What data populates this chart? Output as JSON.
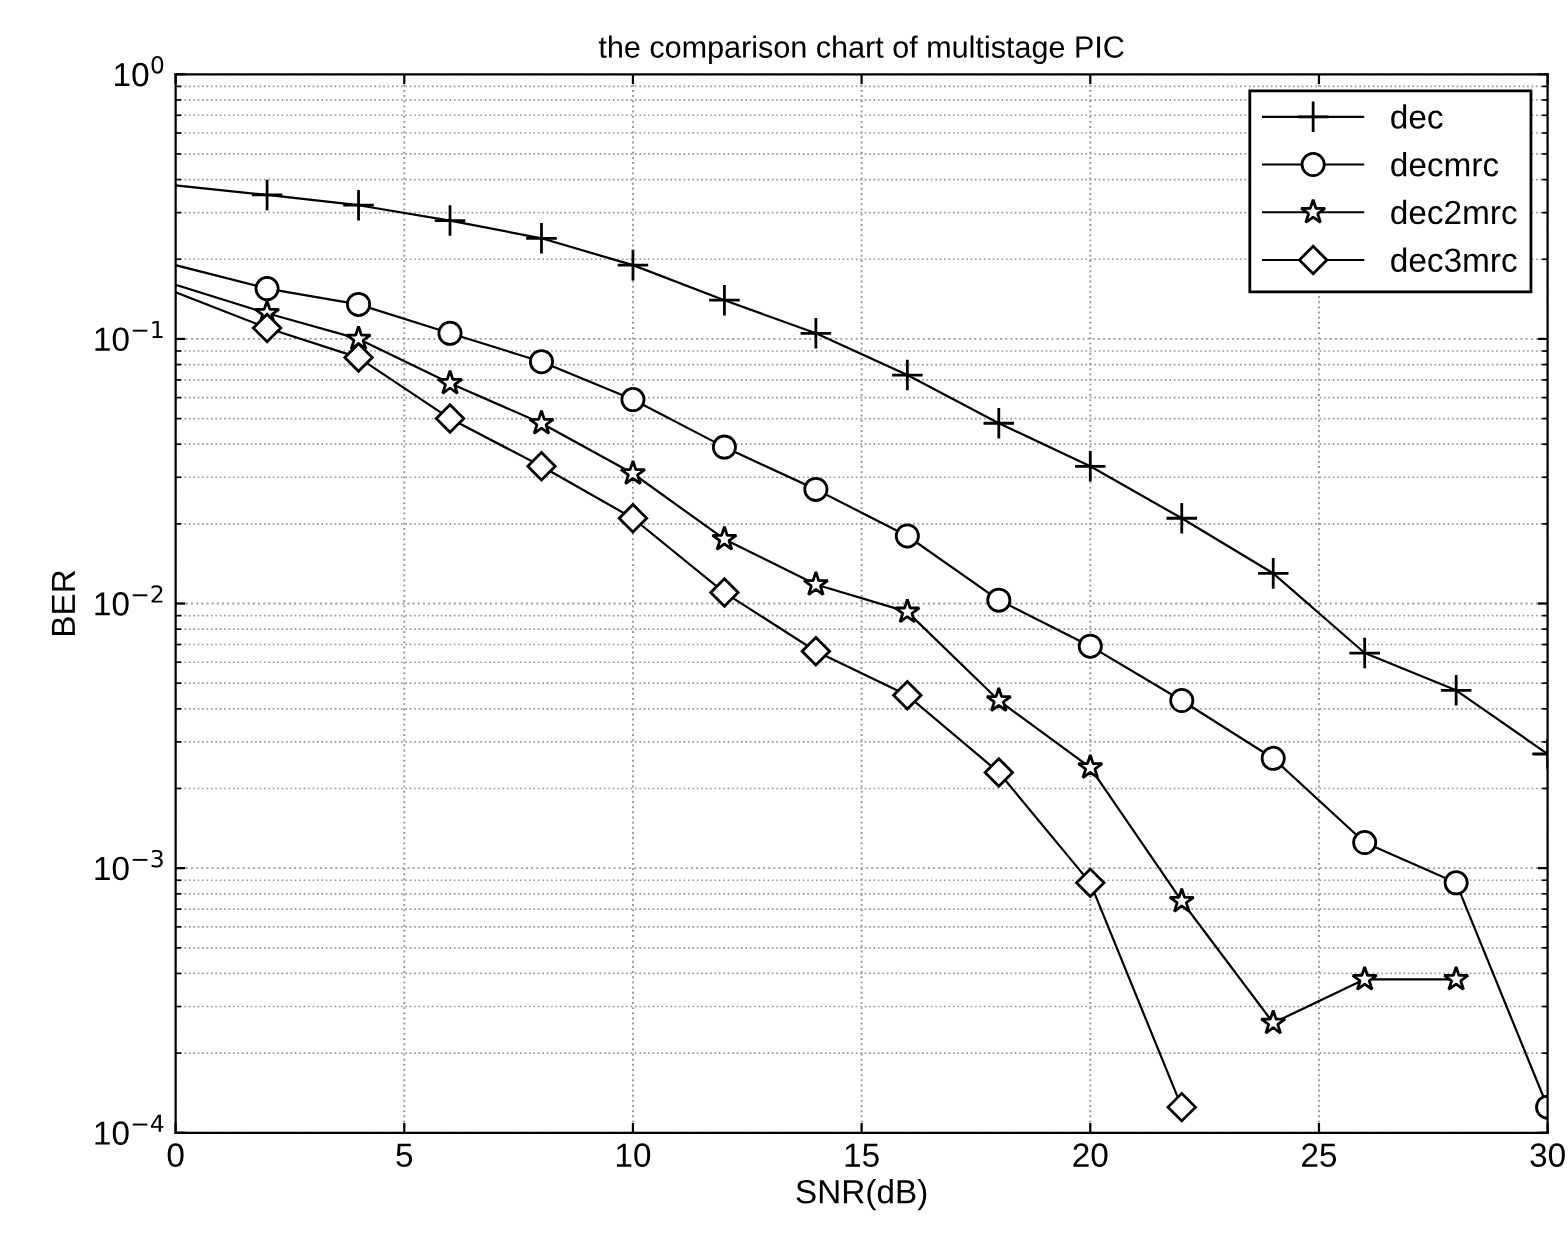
{
  "chart_data": {
    "type": "line",
    "title": "the comparison chart of multistage PIC",
    "xlabel": "SNR(dB)",
    "ylabel": "BER",
    "log": "y",
    "grid": true,
    "legend": "top right",
    "line_style": "solid",
    "xlim": [
      0,
      30
    ],
    "xticks": [
      0,
      5,
      10,
      15,
      20,
      25,
      30
    ],
    "ylim": [
      0.0001,
      1
    ],
    "yticks": [
      {
        "value": 0.0001,
        "label": "10$^{−4}$"
      },
      {
        "value": 0.001,
        "label": "10$^{−3}$"
      },
      {
        "value": 0.01,
        "label": "10$^{−2}$"
      },
      {
        "value": 0.1,
        "label": "10$^{−1}$"
      },
      {
        "value": 1,
        "label": "10$^{0}$"
      }
    ],
    "series": [
      {
        "name": "dec",
        "color": "#000000",
        "marker": "cross",
        "x": [
          0,
          2,
          4,
          6,
          8,
          10,
          12,
          14,
          16,
          18,
          20,
          22,
          24,
          26,
          28,
          30
        ],
        "values": [
          0.38,
          0.35,
          0.32,
          0.28,
          0.24,
          0.19,
          0.14,
          0.105,
          0.073,
          0.048,
          0.033,
          0.021,
          0.013,
          0.0065,
          0.0047,
          0.0027
        ]
      },
      {
        "name": "decmrc",
        "color": "#000000",
        "marker": "circle",
        "x": [
          0,
          2,
          4,
          6,
          8,
          10,
          12,
          14,
          16,
          18,
          20,
          22,
          24,
          26,
          28,
          30
        ],
        "values": [
          0.19,
          0.155,
          0.135,
          0.105,
          0.082,
          0.059,
          0.039,
          0.027,
          0.018,
          0.0103,
          0.0069,
          0.0043,
          0.0026,
          0.00125,
          0.00088,
          0.000125
        ]
      },
      {
        "name": "dec2mrc",
        "color": "#000000",
        "marker": "star",
        "x": [
          0,
          2,
          4,
          6,
          8,
          10,
          12,
          14,
          16,
          18,
          20,
          22,
          24,
          26,
          28
        ],
        "values": [
          0.16,
          0.125,
          0.1,
          0.068,
          0.048,
          0.031,
          0.0175,
          0.0118,
          0.0093,
          0.0043,
          0.0024,
          0.00075,
          0.00026,
          0.00038,
          0.00038
        ]
      },
      {
        "name": "dec3mrc",
        "color": "#000000",
        "marker": "diamond",
        "x": [
          0,
          2,
          4,
          6,
          8,
          10,
          12,
          14,
          16,
          18,
          20,
          22
        ],
        "values": [
          0.15,
          0.11,
          0.085,
          0.05,
          0.033,
          0.021,
          0.011,
          0.0066,
          0.0045,
          0.0023,
          0.00088,
          0.000125
        ]
      }
    ]
  }
}
